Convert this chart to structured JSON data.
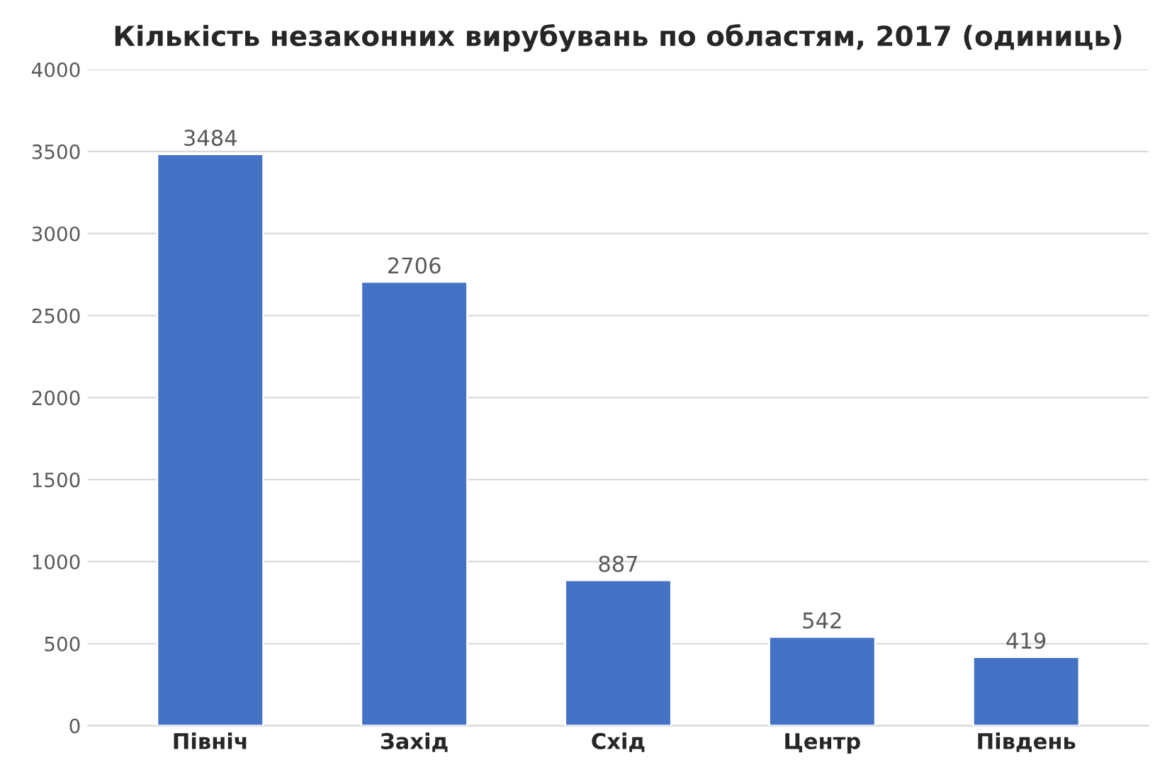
{
  "chart_data": {
    "type": "bar",
    "title": "Кількість незаконних вирубувань по областям, 2017 (одиниць)",
    "categories": [
      "Північ",
      "Захід",
      "Схід",
      "Центр",
      "Південь"
    ],
    "values": [
      3484,
      2706,
      887,
      542,
      419
    ],
    "color": "#4472c4",
    "ylim": [
      0,
      4000
    ],
    "yticks": [
      0,
      500,
      1000,
      1500,
      2000,
      2500,
      3000,
      3500,
      4000
    ],
    "grid": "y",
    "data_labels": true
  }
}
